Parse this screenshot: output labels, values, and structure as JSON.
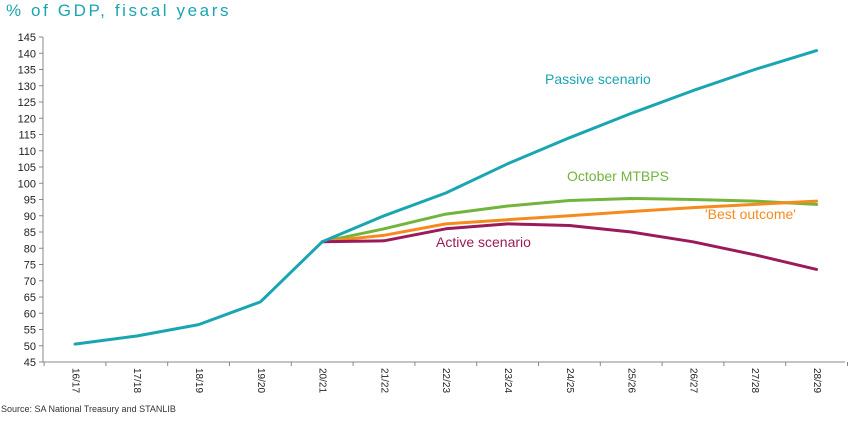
{
  "chart_title": "% of GDP, fiscal years",
  "source": "Source: SA National Treasury and STANLIB",
  "chart_data": {
    "type": "line",
    "categories": [
      "16/17",
      "17/18",
      "18/19",
      "19/20",
      "20/21",
      "21/22",
      "22/23",
      "23/24",
      "24/25",
      "25/26",
      "26/27",
      "27/28",
      "28/29"
    ],
    "ylim": [
      45,
      145
    ],
    "yticks": [
      45,
      50,
      55,
      60,
      65,
      70,
      75,
      80,
      85,
      90,
      95,
      100,
      105,
      110,
      115,
      120,
      125,
      130,
      135,
      140,
      145
    ],
    "grid": false,
    "series": [
      {
        "name": "Passive scenario",
        "color": "#1aa5b2",
        "values": [
          50.5,
          53,
          56.5,
          63.5,
          82,
          90,
          97,
          106,
          114,
          121.5,
          128.5,
          135,
          140.8
        ]
      },
      {
        "name": "October MTBPS",
        "color": "#72b43c",
        "values": [
          null,
          null,
          null,
          null,
          82,
          86,
          90.5,
          93,
          94.7,
          95.3,
          95,
          94.5,
          93.5
        ]
      },
      {
        "name": "'Best outcome'",
        "color": "#f58a1f",
        "values": [
          null,
          null,
          null,
          null,
          82,
          84,
          87.5,
          88.8,
          90,
          91.3,
          92.5,
          93.5,
          94.5
        ]
      },
      {
        "name": "Active scenario",
        "color": "#9b1b5a",
        "values": [
          null,
          null,
          null,
          null,
          82,
          82.3,
          86,
          87.5,
          87,
          85,
          82,
          78,
          73.5
        ]
      }
    ]
  }
}
